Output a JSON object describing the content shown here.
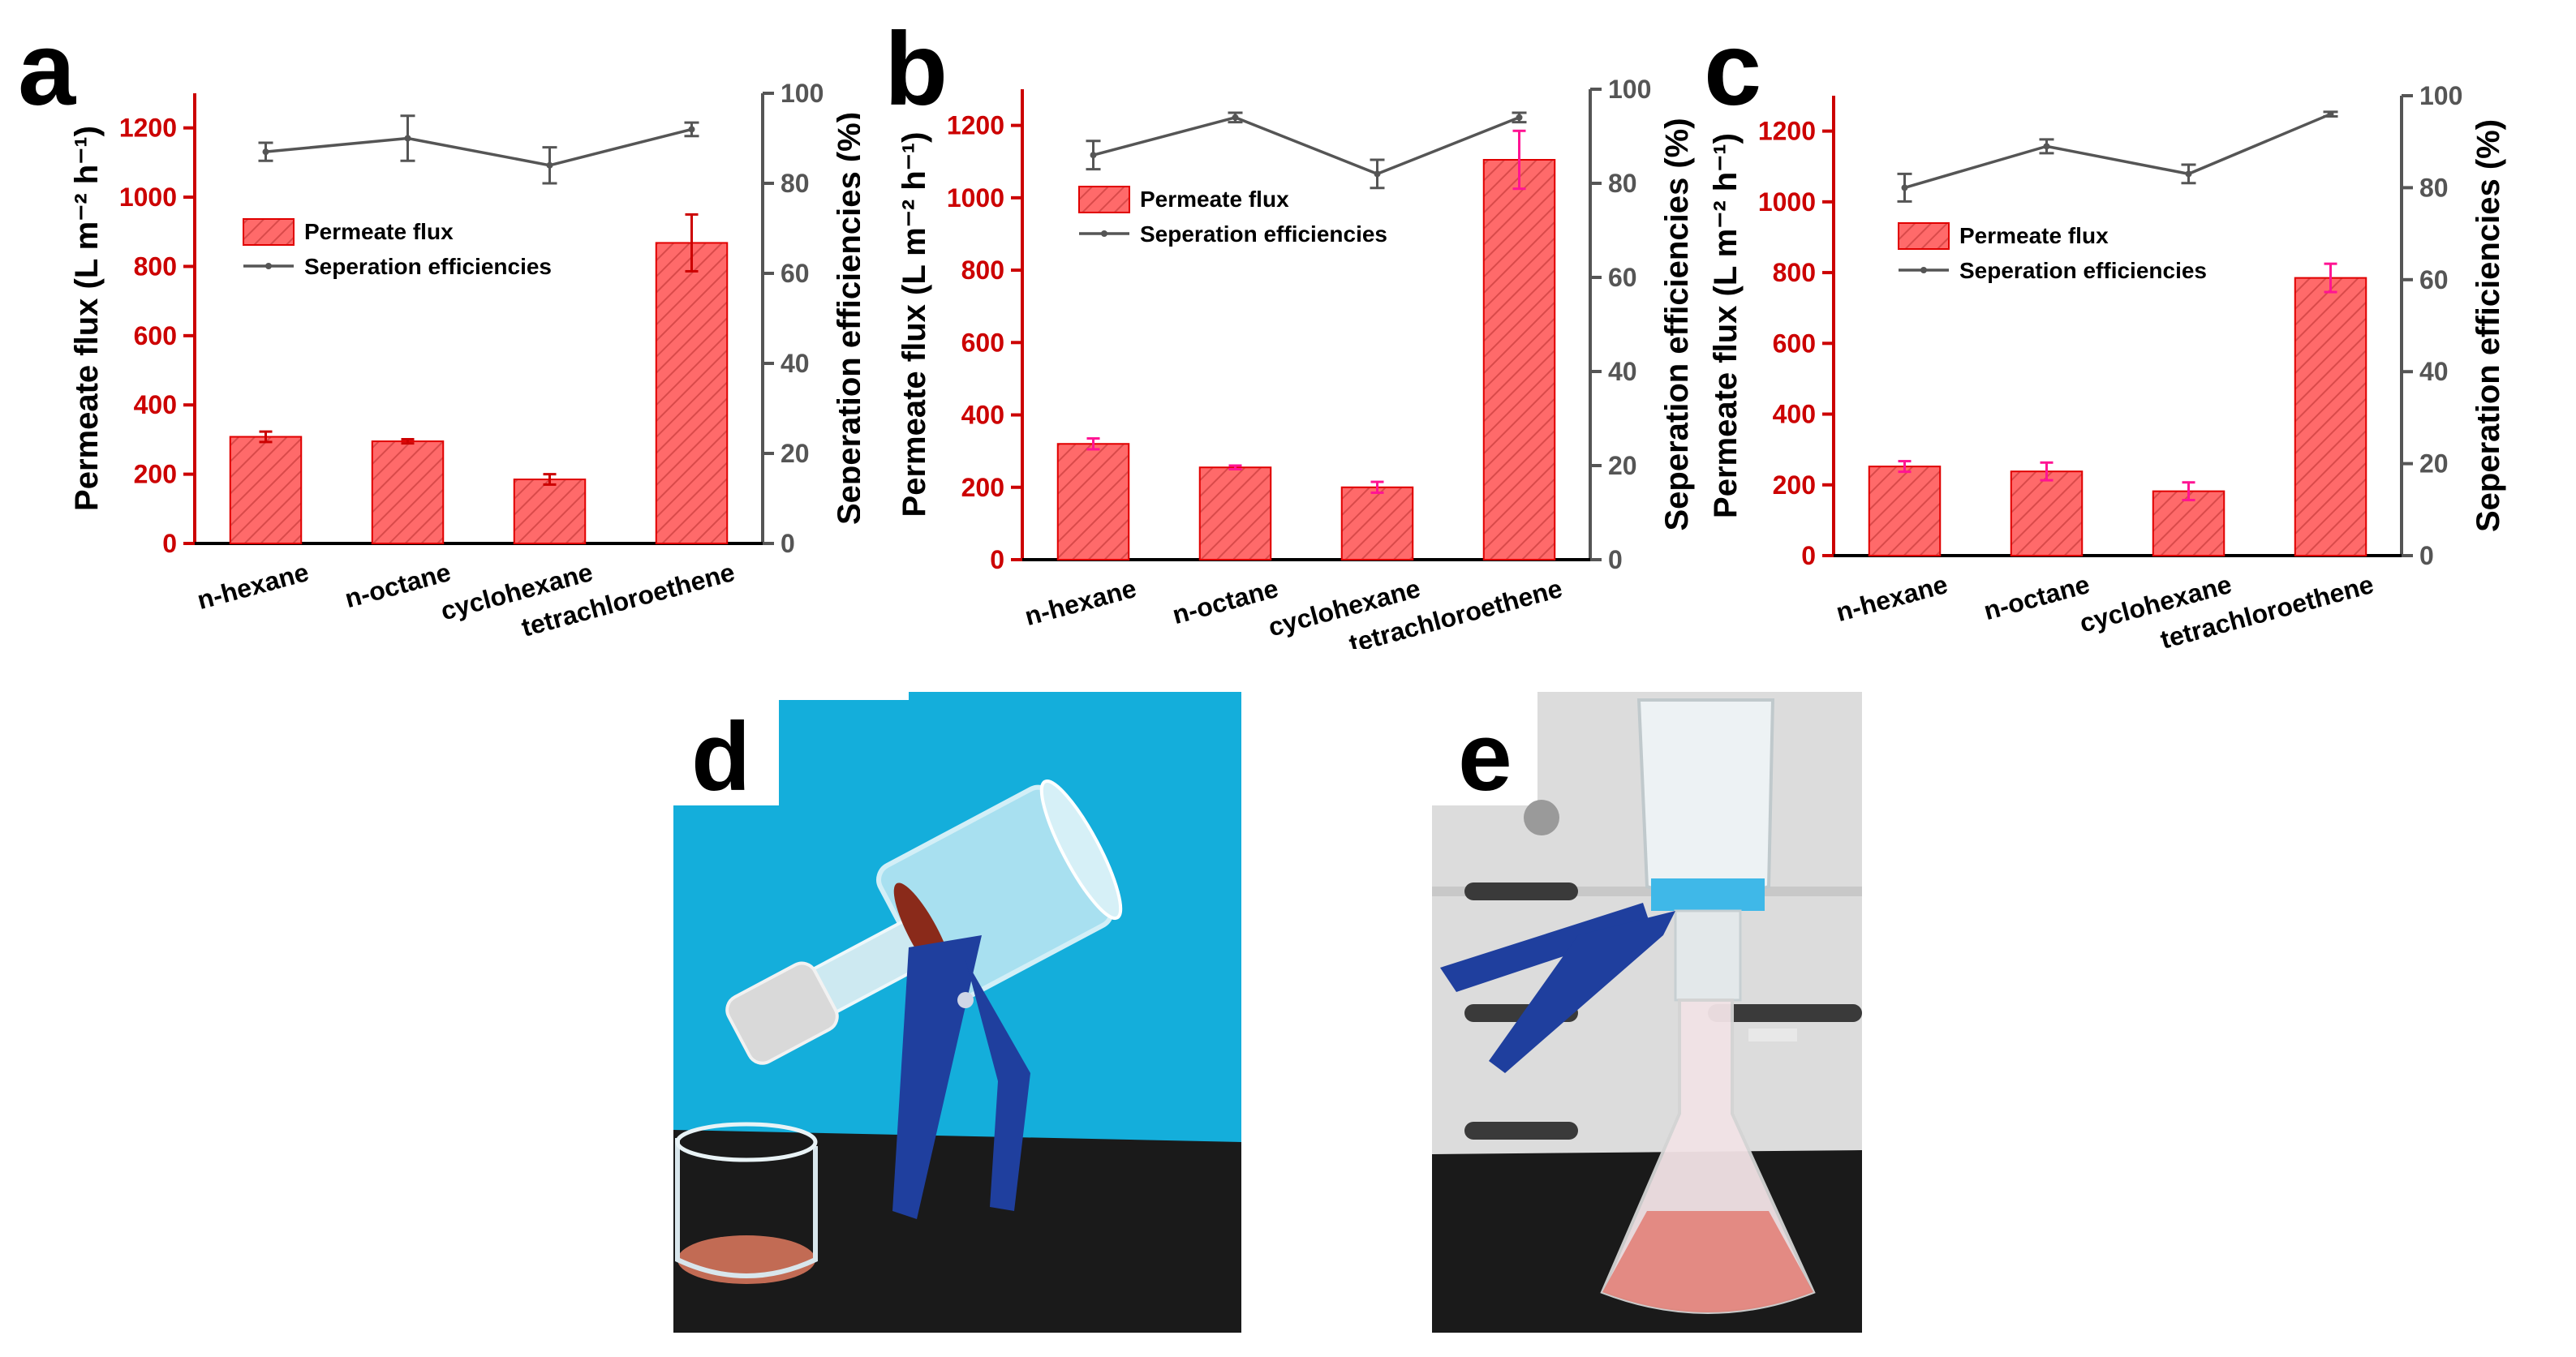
{
  "chart_data": [
    {
      "panel": "a",
      "type": "bar",
      "categories": [
        "n-hexane",
        "n-octane",
        "cyclohexane",
        "tetrachloroethene"
      ],
      "series": [
        {
          "name": "Permeate flux",
          "type": "bar",
          "axis": "left",
          "values": [
            308,
            295,
            185,
            868
          ],
          "errors": [
            15,
            6,
            15,
            82
          ],
          "error_color": "#cc0000"
        },
        {
          "name": "Seperation efficiencies",
          "type": "line",
          "axis": "right",
          "values": [
            87,
            90,
            84,
            92
          ],
          "errors": [
            2,
            5,
            4,
            1.5
          ]
        }
      ],
      "ylabel": "Permeate flux (L m⁻² h⁻¹)",
      "y2label": "Seperation efficiencies (%)",
      "ylim": [
        0,
        1300
      ],
      "y_ticks": [
        0,
        200,
        400,
        600,
        800,
        1000,
        1200
      ],
      "y2lim": [
        0,
        100
      ],
      "y2_ticks": [
        0,
        20,
        40,
        60,
        80,
        100
      ],
      "legend": "center-left"
    },
    {
      "panel": "b",
      "type": "bar",
      "categories": [
        "n-hexane",
        "n-octane",
        "cyclohexane",
        "tetrachloroethene"
      ],
      "series": [
        {
          "name": "Permeate flux",
          "type": "bar",
          "axis": "left",
          "values": [
            320,
            255,
            200,
            1105
          ],
          "errors": [
            15,
            5,
            15,
            80
          ],
          "error_color": "#ff1493"
        },
        {
          "name": "Seperation efficiencies",
          "type": "line",
          "axis": "right",
          "values": [
            86,
            94,
            82,
            94
          ],
          "errors": [
            3,
            1,
            3,
            1
          ]
        }
      ],
      "ylabel": "Permeate flux (L m⁻² h⁻¹)",
      "y2label": "Seperation efficiencies (%)",
      "ylim": [
        0,
        1300
      ],
      "y_ticks": [
        0,
        200,
        400,
        600,
        800,
        1000,
        1200
      ],
      "y2lim": [
        0,
        100
      ],
      "y2_ticks": [
        0,
        20,
        40,
        60,
        80,
        100
      ],
      "legend": "upper-left"
    },
    {
      "panel": "c",
      "type": "bar",
      "categories": [
        "n-hexane",
        "n-octane",
        "cyclohexane",
        "tetrachloroethene"
      ],
      "series": [
        {
          "name": "Permeate flux",
          "type": "bar",
          "axis": "left",
          "values": [
            252,
            238,
            182,
            785
          ],
          "errors": [
            15,
            25,
            25,
            40
          ],
          "error_color": "#ff1493"
        },
        {
          "name": "Seperation efficiencies",
          "type": "line",
          "axis": "right",
          "values": [
            80,
            89,
            83,
            96
          ],
          "errors": [
            3,
            1.5,
            2,
            0.5
          ]
        }
      ],
      "ylabel": "Permeate flux (L m⁻² h⁻¹)",
      "y2label": "Seperation efficiencies (%)",
      "ylim": [
        0,
        1300
      ],
      "y_ticks": [
        0,
        200,
        400,
        600,
        800,
        1000,
        1200
      ],
      "y2lim": [
        0,
        100
      ],
      "y2_ticks": [
        0,
        20,
        40,
        60,
        80,
        100
      ],
      "legend": "center-left"
    }
  ],
  "photos": [
    {
      "panel": "d",
      "background": "#14aedb"
    },
    {
      "panel": "e",
      "background": "#dcdcdc"
    }
  ],
  "colors": {
    "bar_fill": "#ff6a6a",
    "bar_hatch": "#d94a4a",
    "bar_edge": "#e00000",
    "left_axis": "#cc0000",
    "right_axis": "#555555",
    "line": "#555555"
  }
}
